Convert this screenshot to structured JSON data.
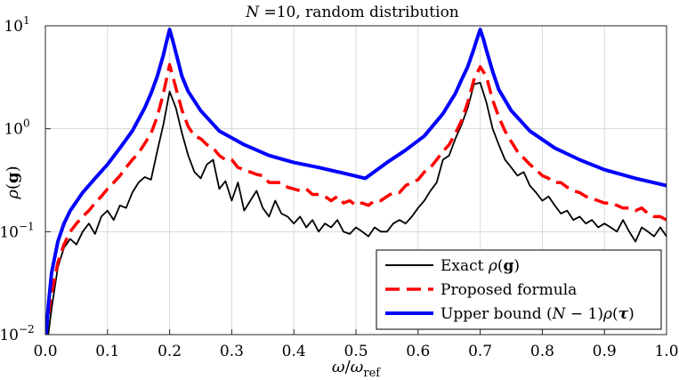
{
  "chart_data": {
    "type": "line",
    "title": "N =10, random distribution",
    "xlabel": "ω/ω_ref",
    "ylabel": "ρ(g)",
    "xlim": [
      0.0,
      1.0
    ],
    "ylim": [
      0.01,
      10
    ],
    "yscale": "log",
    "grid": true,
    "legend_position": "bottom-right",
    "x_ticks": [
      0.0,
      0.1,
      0.2,
      0.3,
      0.4,
      0.5,
      0.6,
      0.7,
      0.8,
      0.9,
      1.0
    ],
    "x_tick_labels": [
      "0.0",
      "0.1",
      "0.2",
      "0.3",
      "0.4",
      "0.5",
      "0.6",
      "0.7",
      "0.8",
      "0.9",
      "1.0"
    ],
    "y_ticks": [
      0.01,
      0.1,
      1,
      10
    ],
    "y_tick_labels": [
      {
        "base": "10",
        "exp": "−2"
      },
      {
        "base": "10",
        "exp": "−1"
      },
      {
        "base": "10",
        "exp": "0"
      },
      {
        "base": "10",
        "exp": "1"
      }
    ],
    "series": [
      {
        "name": "Exact ρ(g)",
        "color": "#000000",
        "x": [
          0.0,
          0.01,
          0.02,
          0.03,
          0.04,
          0.05,
          0.06,
          0.07,
          0.08,
          0.09,
          0.1,
          0.11,
          0.12,
          0.13,
          0.14,
          0.15,
          0.16,
          0.17,
          0.18,
          0.19,
          0.2,
          0.21,
          0.22,
          0.23,
          0.24,
          0.25,
          0.26,
          0.27,
          0.28,
          0.29,
          0.3,
          0.31,
          0.32,
          0.33,
          0.34,
          0.35,
          0.36,
          0.37,
          0.38,
          0.39,
          0.4,
          0.41,
          0.42,
          0.43,
          0.44,
          0.45,
          0.46,
          0.47,
          0.48,
          0.49,
          0.5,
          0.51,
          0.52,
          0.53,
          0.54,
          0.55,
          0.56,
          0.57,
          0.58,
          0.59,
          0.6,
          0.61,
          0.62,
          0.63,
          0.64,
          0.65,
          0.66,
          0.67,
          0.68,
          0.69,
          0.7,
          0.71,
          0.72,
          0.73,
          0.74,
          0.75,
          0.76,
          0.77,
          0.78,
          0.79,
          0.8,
          0.81,
          0.82,
          0.83,
          0.84,
          0.85,
          0.86,
          0.87,
          0.88,
          0.89,
          0.9,
          0.91,
          0.92,
          0.93,
          0.94,
          0.95,
          0.96,
          0.97,
          0.98,
          0.99,
          1.0
        ],
        "values": [
          0.006,
          0.018,
          0.045,
          0.07,
          0.085,
          0.075,
          0.1,
          0.12,
          0.095,
          0.14,
          0.16,
          0.13,
          0.18,
          0.17,
          0.24,
          0.3,
          0.34,
          0.32,
          0.6,
          1.1,
          2.3,
          1.6,
          0.9,
          0.55,
          0.38,
          0.33,
          0.45,
          0.5,
          0.26,
          0.31,
          0.2,
          0.3,
          0.16,
          0.2,
          0.25,
          0.17,
          0.14,
          0.2,
          0.15,
          0.14,
          0.12,
          0.14,
          0.11,
          0.13,
          0.1,
          0.12,
          0.11,
          0.13,
          0.1,
          0.095,
          0.11,
          0.1,
          0.09,
          0.11,
          0.1,
          0.1,
          0.12,
          0.13,
          0.12,
          0.14,
          0.17,
          0.2,
          0.25,
          0.3,
          0.5,
          0.55,
          0.8,
          1.1,
          1.6,
          2.7,
          2.8,
          1.8,
          1.0,
          0.7,
          0.5,
          0.42,
          0.35,
          0.38,
          0.28,
          0.24,
          0.2,
          0.22,
          0.18,
          0.15,
          0.16,
          0.13,
          0.14,
          0.12,
          0.13,
          0.11,
          0.12,
          0.11,
          0.1,
          0.13,
          0.1,
          0.08,
          0.11,
          0.1,
          0.09,
          0.11,
          0.09
        ]
      },
      {
        "name": "Proposed formula",
        "color": "#ff0000",
        "x": [
          0.0,
          0.01,
          0.02,
          0.03,
          0.04,
          0.05,
          0.06,
          0.07,
          0.08,
          0.09,
          0.1,
          0.11,
          0.12,
          0.13,
          0.14,
          0.15,
          0.16,
          0.17,
          0.18,
          0.19,
          0.2,
          0.21,
          0.22,
          0.23,
          0.24,
          0.25,
          0.26,
          0.27,
          0.28,
          0.29,
          0.3,
          0.31,
          0.32,
          0.33,
          0.34,
          0.35,
          0.36,
          0.37,
          0.38,
          0.39,
          0.4,
          0.41,
          0.42,
          0.43,
          0.44,
          0.45,
          0.46,
          0.47,
          0.48,
          0.49,
          0.5,
          0.51,
          0.52,
          0.53,
          0.54,
          0.55,
          0.56,
          0.57,
          0.58,
          0.59,
          0.6,
          0.61,
          0.62,
          0.63,
          0.64,
          0.65,
          0.66,
          0.67,
          0.68,
          0.69,
          0.7,
          0.71,
          0.72,
          0.73,
          0.74,
          0.75,
          0.76,
          0.77,
          0.78,
          0.79,
          0.8,
          0.81,
          0.82,
          0.83,
          0.84,
          0.85,
          0.86,
          0.87,
          0.88,
          0.89,
          0.9,
          0.91,
          0.92,
          0.93,
          0.94,
          0.95,
          0.96,
          0.97,
          0.98,
          0.99,
          1.0
        ],
        "values": [
          0.01,
          0.025,
          0.05,
          0.075,
          0.1,
          0.12,
          0.14,
          0.16,
          0.19,
          0.22,
          0.26,
          0.3,
          0.35,
          0.42,
          0.5,
          0.58,
          0.72,
          0.9,
          1.3,
          2.2,
          4.2,
          2.5,
          1.5,
          1.05,
          0.85,
          0.8,
          0.7,
          0.65,
          0.55,
          0.5,
          0.5,
          0.42,
          0.4,
          0.38,
          0.36,
          0.35,
          0.3,
          0.3,
          0.3,
          0.27,
          0.26,
          0.25,
          0.26,
          0.23,
          0.23,
          0.22,
          0.2,
          0.22,
          0.19,
          0.2,
          0.18,
          0.19,
          0.18,
          0.2,
          0.2,
          0.22,
          0.24,
          0.24,
          0.28,
          0.3,
          0.32,
          0.38,
          0.42,
          0.5,
          0.6,
          0.7,
          0.9,
          1.2,
          1.8,
          3.0,
          4.0,
          3.2,
          1.9,
          1.3,
          0.95,
          0.75,
          0.6,
          0.52,
          0.45,
          0.4,
          0.35,
          0.33,
          0.3,
          0.3,
          0.27,
          0.25,
          0.24,
          0.22,
          0.21,
          0.2,
          0.19,
          0.19,
          0.18,
          0.17,
          0.17,
          0.16,
          0.17,
          0.15,
          0.14,
          0.14,
          0.13
        ]
      },
      {
        "name": "Upper bound (N − 1)ρ(τ)",
        "color": "#0000ff",
        "x": [
          0.0,
          0.005,
          0.01,
          0.02,
          0.03,
          0.04,
          0.06,
          0.08,
          0.1,
          0.12,
          0.14,
          0.16,
          0.17,
          0.18,
          0.19,
          0.195,
          0.2,
          0.205,
          0.21,
          0.22,
          0.23,
          0.25,
          0.28,
          0.32,
          0.36,
          0.4,
          0.44,
          0.48,
          0.515,
          0.55,
          0.58,
          0.61,
          0.64,
          0.66,
          0.67,
          0.68,
          0.69,
          0.695,
          0.7,
          0.705,
          0.71,
          0.72,
          0.73,
          0.75,
          0.78,
          0.82,
          0.86,
          0.9,
          0.95,
          1.0
        ],
        "values": [
          0.008,
          0.02,
          0.04,
          0.08,
          0.12,
          0.16,
          0.24,
          0.33,
          0.45,
          0.65,
          0.95,
          1.6,
          2.2,
          3.2,
          5.2,
          7.0,
          9.2,
          7.2,
          5.5,
          3.2,
          2.3,
          1.5,
          0.95,
          0.7,
          0.55,
          0.47,
          0.42,
          0.37,
          0.33,
          0.47,
          0.62,
          0.85,
          1.4,
          2.2,
          3.0,
          4.0,
          6.0,
          7.5,
          9.2,
          7.5,
          5.8,
          3.6,
          2.4,
          1.5,
          0.95,
          0.65,
          0.5,
          0.4,
          0.33,
          0.28
        ]
      }
    ]
  }
}
